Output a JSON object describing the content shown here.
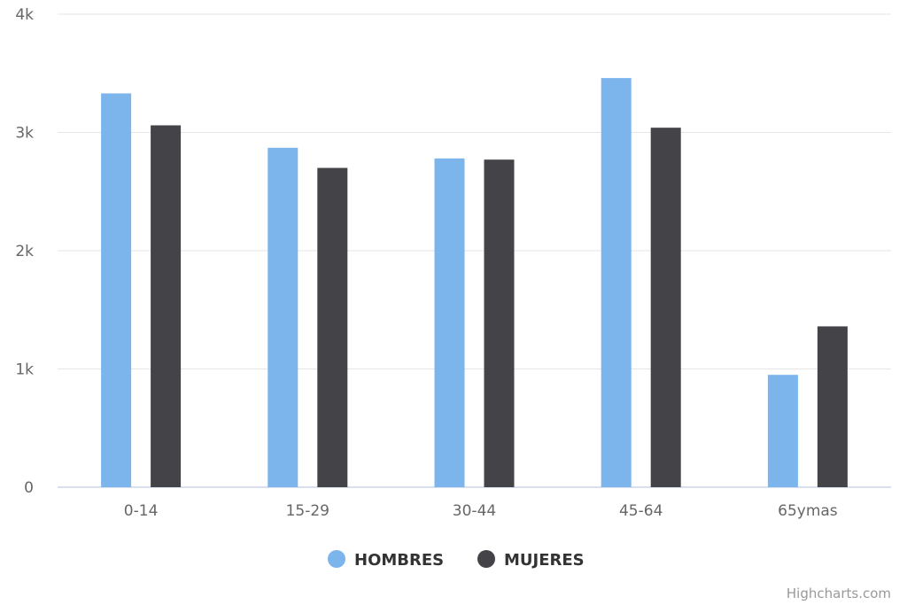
{
  "chart_data": {
    "type": "bar",
    "categories": [
      "0-14",
      "15-29",
      "30-44",
      "45-64",
      "65ymas"
    ],
    "series": [
      {
        "name": "HOMBRES",
        "color": "#7cb5ec",
        "values": [
          3330,
          2870,
          2780,
          3460,
          950
        ]
      },
      {
        "name": "MUJERES",
        "color": "#434348",
        "values": [
          3060,
          2700,
          2770,
          3040,
          1360
        ]
      }
    ],
    "y_ticks": [
      "0",
      "1k",
      "2k",
      "3k",
      "4k"
    ],
    "ylim": [
      0,
      4000
    ],
    "grid": true,
    "legend": "bottom-center"
  },
  "credits": "Highcharts.com"
}
